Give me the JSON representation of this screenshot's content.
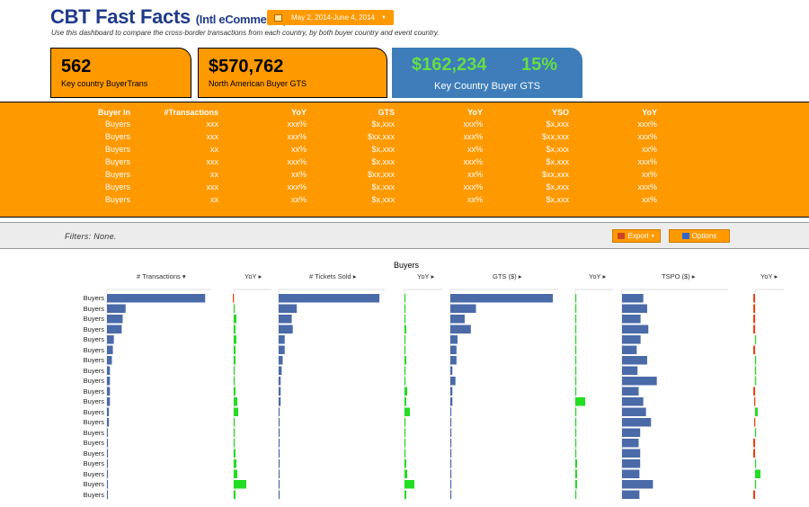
{
  "header": {
    "title": "CBT Fast Facts",
    "subtitle": "(Intl eCommerce)",
    "date_range": "May 2, 2014-June 4, 2014",
    "description": "Use this dashboard to compare the cross-border transactions from each country, by both buyer country and event country."
  },
  "kpis": [
    {
      "value": "562",
      "label": "Key country BuyerTrans"
    },
    {
      "value": "$570,762",
      "label": "North American Buyer GTS"
    }
  ],
  "kpi_blue": {
    "value": "$162,234",
    "pct": "15%",
    "label": "Key Country Buyer GTS"
  },
  "summary_table": {
    "headers": [
      "Buyer In",
      "#Transactions",
      "YoY",
      "GTS",
      "YoY",
      "YSO",
      "YoY"
    ],
    "rows": [
      [
        "Buyers",
        "xxx",
        "xxx%",
        "$x,xxx",
        "xxx%",
        "$x,xxx",
        "xxx%"
      ],
      [
        "Buyers",
        "xxx",
        "xxx%",
        "$xx,xxx",
        "xxx%",
        "$xx,xxx",
        "xxx%"
      ],
      [
        "Buyers",
        "xx",
        "xx%",
        "$x,xxx",
        "xx%",
        "$x,xxx",
        "xx%"
      ],
      [
        "Buyers",
        "xxx",
        "xxx%",
        "$x,xxx",
        "xxx%",
        "$x,xxx",
        "xxx%"
      ],
      [
        "Buyers",
        "xx",
        "xx%",
        "$xx,xxx",
        "xx%",
        "$xx,xxx",
        "xx%"
      ],
      [
        "Buyers",
        "xxx",
        "xxx%",
        "$x,xxx",
        "xxx%",
        "$x,xxx",
        "xxx%"
      ],
      [
        "Buyers",
        "xx",
        "xx%",
        "$x,xxx",
        "xx%",
        "$x,xxx",
        "xx%"
      ]
    ]
  },
  "filters": {
    "text": "Filters: None.",
    "export_label": "Export",
    "options_label": "Options"
  },
  "chart_data": {
    "type": "bar",
    "title": "Buyers",
    "categories": [
      "Buyers",
      "Buyers",
      "Buyers",
      "Buyers",
      "Buyers",
      "Buyers",
      "Buyers",
      "Buyers",
      "Buyers",
      "Buyers",
      "Buyers",
      "Buyers",
      "Buyers",
      "Buyers",
      "Buyers",
      "Buyers",
      "Buyers",
      "Buyers",
      "Buyers",
      "Buyers"
    ],
    "column_headers": [
      "# Transactions",
      "YoY",
      "# Tickets Sold",
      "YoY",
      "GTS ($)",
      "YoY",
      "TSPO ($)",
      "YoY"
    ],
    "series": [
      {
        "values": [
          100,
          19,
          16,
          15,
          7,
          6,
          5,
          3,
          3,
          3,
          3,
          2,
          2,
          1,
          1,
          1,
          1,
          1,
          1,
          1
        ]
      },
      {
        "values": [
          -1,
          0,
          3,
          2,
          3,
          2,
          2,
          1,
          1,
          2,
          4,
          5,
          0,
          0,
          0,
          2,
          3,
          4,
          14,
          2
        ]
      },
      {
        "values": [
          100,
          18,
          13,
          14,
          6,
          6,
          4,
          3,
          2,
          2,
          2,
          1,
          1,
          1,
          1,
          1,
          1,
          1,
          1,
          1
        ]
      },
      {
        "values": [
          0,
          0,
          1,
          2,
          1,
          1,
          2,
          0,
          0,
          3,
          2,
          6,
          0,
          0,
          0,
          1,
          2,
          3,
          11,
          2
        ]
      },
      {
        "values": [
          100,
          25,
          14,
          20,
          7,
          6,
          6,
          2,
          5,
          2,
          2,
          1,
          1,
          1,
          1,
          1,
          1,
          1,
          1,
          1
        ]
      },
      {
        "values": [
          0,
          0,
          0,
          0,
          0,
          0,
          0,
          0,
          0,
          0,
          11,
          0,
          0,
          0,
          0,
          0,
          2,
          2,
          2,
          0
        ]
      },
      {
        "values": [
          55,
          65,
          48,
          68,
          48,
          38,
          65,
          40,
          90,
          43,
          55,
          62,
          75,
          47,
          43,
          47,
          47,
          45,
          80,
          45
        ]
      },
      {
        "values": [
          -2,
          -2,
          -2,
          -2,
          1,
          -2,
          1,
          0,
          1,
          -2,
          -1,
          3,
          -1,
          0,
          -2,
          -2,
          0,
          6,
          0,
          -2
        ]
      }
    ]
  },
  "colors": {
    "orange": "#ff9900",
    "blue_bar": "#4a6aa8",
    "green": "#22dd22",
    "red": "#ee4411",
    "kpi_blue": "#3e7dba"
  }
}
